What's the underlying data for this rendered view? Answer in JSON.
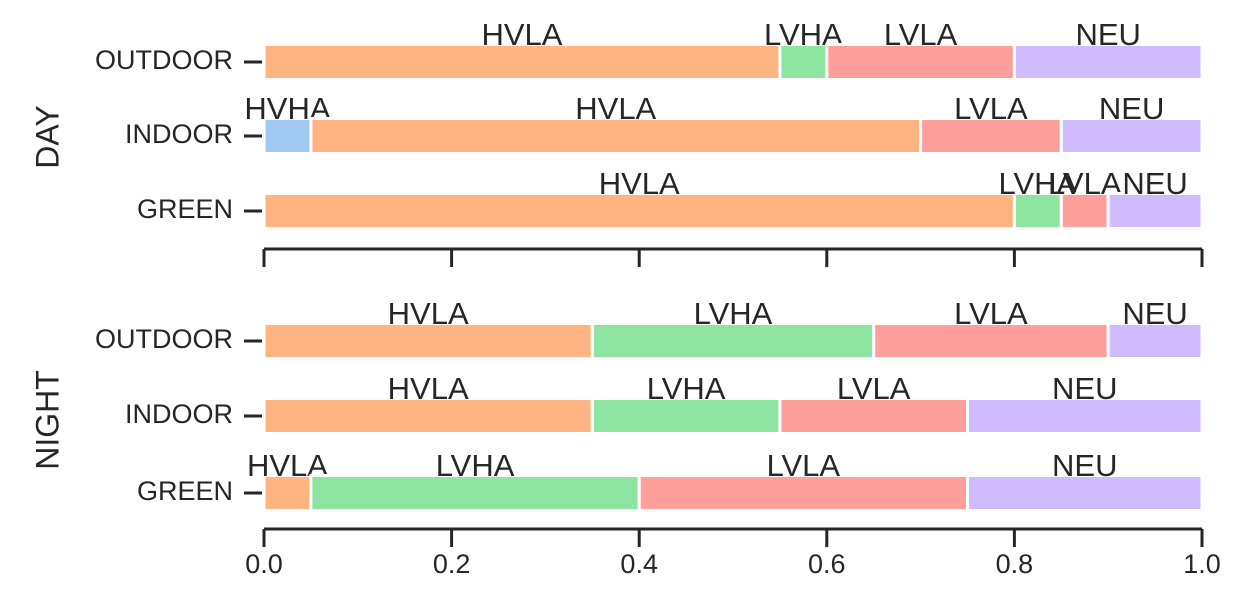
{
  "chart_data": {
    "type": "bar",
    "orientation": "horizontal",
    "stacked": true,
    "colors": {
      "HVHA": "#a1c9f4",
      "HVLA": "#ffb482",
      "LVHA": "#8de5a1",
      "LVLA": "#ff9f9b",
      "NEU": "#d0bbff"
    },
    "xlim": [
      0,
      1
    ],
    "xticks": [
      "0.0",
      "0.2",
      "0.4",
      "0.6",
      "0.8",
      "1.0"
    ],
    "panels": [
      {
        "label": "DAY",
        "rows": [
          {
            "category": "OUTDOOR",
            "segments": [
              {
                "label": "HVLA",
                "value": 0.55
              },
              {
                "label": "LVHA",
                "value": 0.05
              },
              {
                "label": "LVLA",
                "value": 0.2
              },
              {
                "label": "NEU",
                "value": 0.2
              }
            ]
          },
          {
            "category": "INDOOR",
            "segments": [
              {
                "label": "HVHA",
                "value": 0.05
              },
              {
                "label": "HVLA",
                "value": 0.65
              },
              {
                "label": "LVLA",
                "value": 0.15
              },
              {
                "label": "NEU",
                "value": 0.15
              }
            ]
          },
          {
            "category": "GREEN",
            "segments": [
              {
                "label": "HVLA",
                "value": 0.8
              },
              {
                "label": "LVHA",
                "value": 0.05
              },
              {
                "label": "LVLA",
                "value": 0.05
              },
              {
                "label": "NEU",
                "value": 0.1
              }
            ]
          }
        ]
      },
      {
        "label": "NIGHT",
        "rows": [
          {
            "category": "OUTDOOR",
            "segments": [
              {
                "label": "HVLA",
                "value": 0.35
              },
              {
                "label": "LVHA",
                "value": 0.3
              },
              {
                "label": "LVLA",
                "value": 0.25
              },
              {
                "label": "NEU",
                "value": 0.1
              }
            ]
          },
          {
            "category": "INDOOR",
            "segments": [
              {
                "label": "HVLA",
                "value": 0.35
              },
              {
                "label": "LVHA",
                "value": 0.2
              },
              {
                "label": "LVLA",
                "value": 0.2
              },
              {
                "label": "NEU",
                "value": 0.25
              }
            ]
          },
          {
            "category": "GREEN",
            "segments": [
              {
                "label": "HVLA",
                "value": 0.05
              },
              {
                "label": "LVHA",
                "value": 0.35
              },
              {
                "label": "LVLA",
                "value": 0.35
              },
              {
                "label": "NEU",
                "value": 0.25
              }
            ]
          }
        ]
      }
    ]
  }
}
